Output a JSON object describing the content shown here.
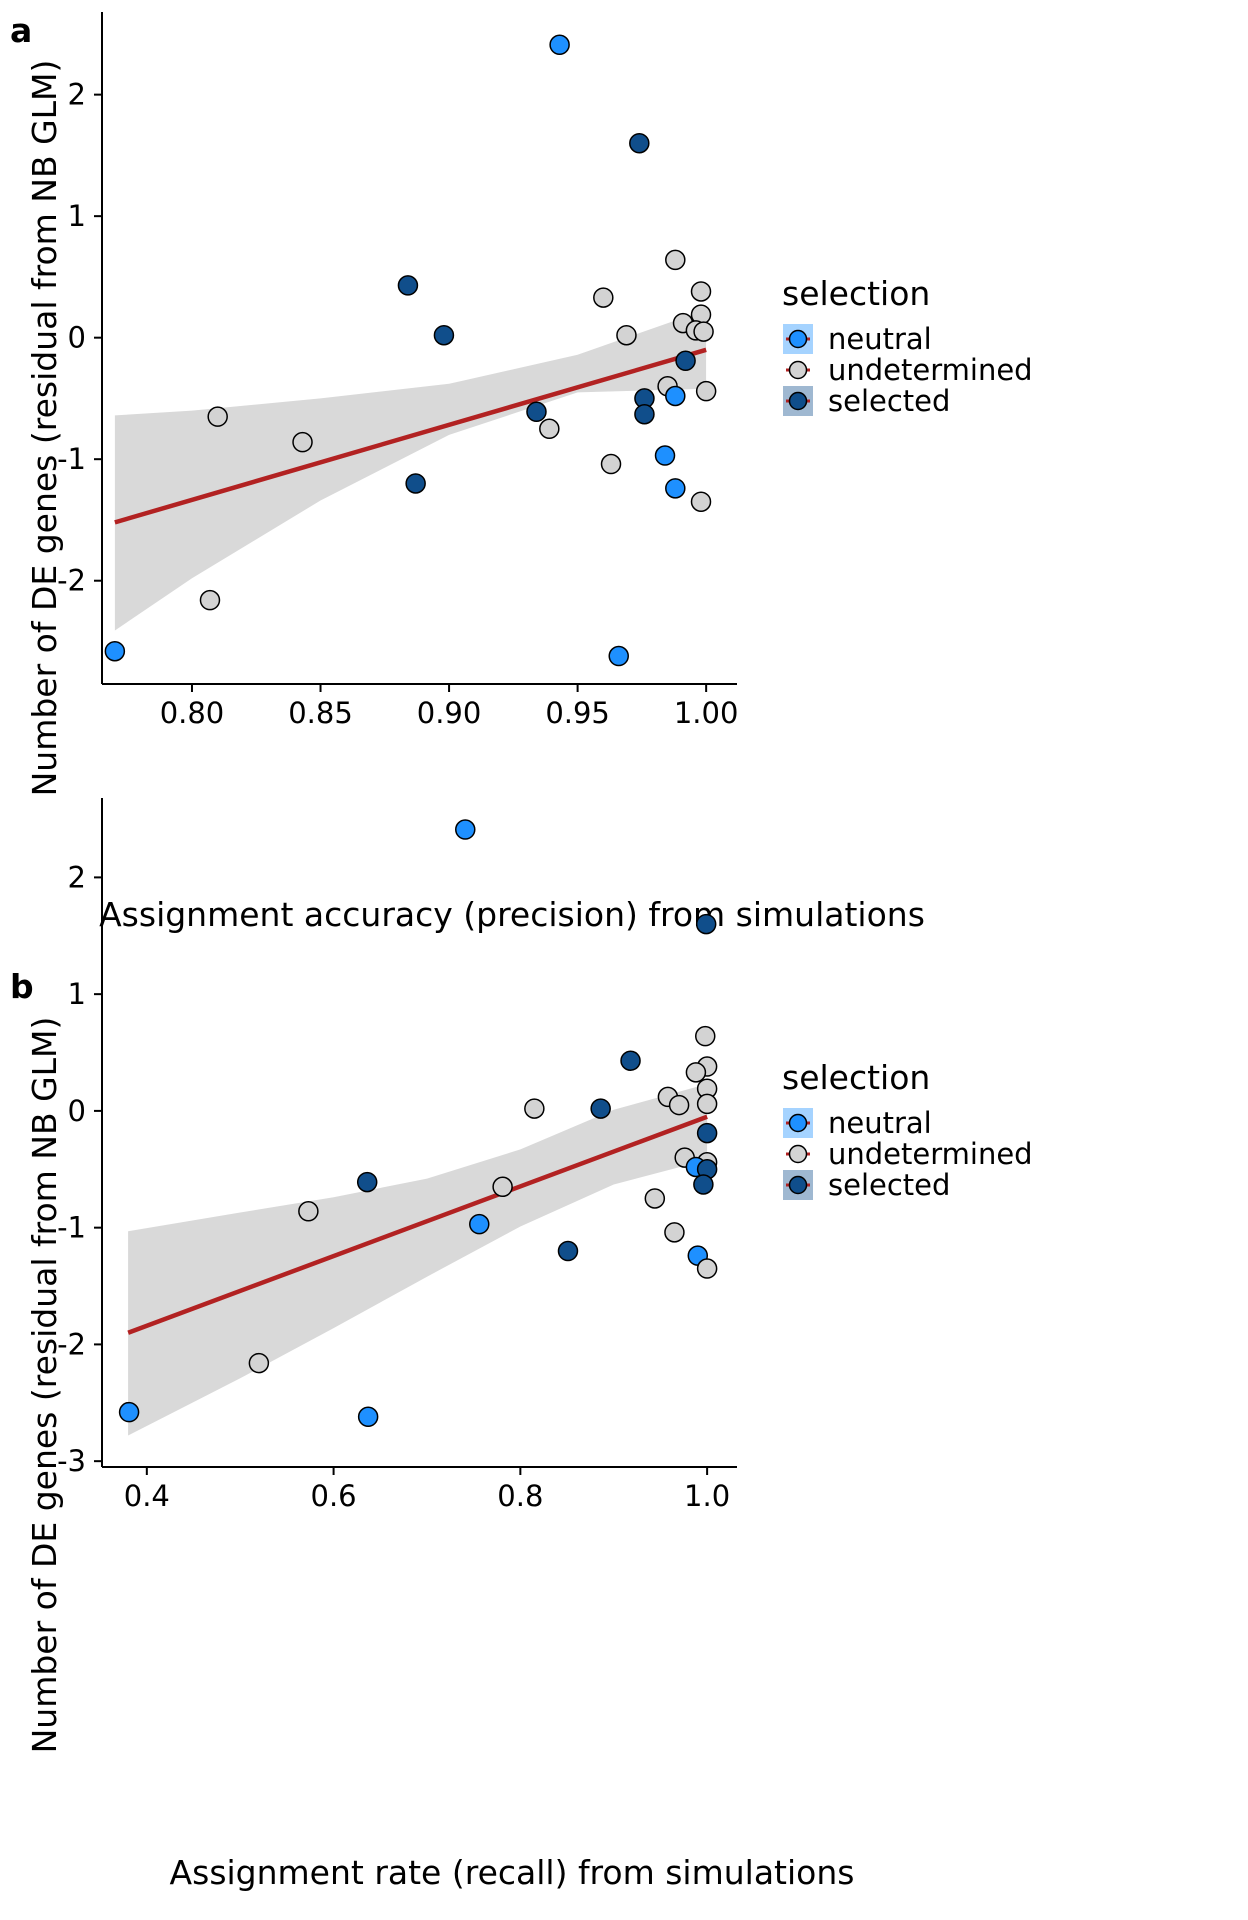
{
  "colors": {
    "neutral": "#1E90FF",
    "undetermined": "#D3D3D3",
    "selected": "#104E8B",
    "fit_line": "#B22222",
    "ribbon": "#D9D9D9",
    "point_stroke": "#000000",
    "axis": "#000000"
  },
  "legend": {
    "title": "selection",
    "items": [
      {
        "key": "neutral",
        "label": "neutral"
      },
      {
        "key": "undetermined",
        "label": "undetermined"
      },
      {
        "key": "selected",
        "label": "selected"
      }
    ]
  },
  "chart_data": [
    {
      "type": "scatter",
      "panel_label": "a",
      "xlabel": "Assignment accuracy (precision) from simulations",
      "ylabel": "Number of DE genes (residual from NB GLM)",
      "xlim": [
        0.765,
        1.012
      ],
      "ylim": [
        -2.85,
        2.68
      ],
      "xticks": [
        0.8,
        0.85,
        0.9,
        0.95,
        1.0
      ],
      "xtick_labels": [
        "0.80",
        "0.85",
        "0.90",
        "0.95",
        "1.00"
      ],
      "yticks": [
        -2,
        -1,
        0,
        1,
        2
      ],
      "ytick_labels": [
        "-2",
        "-1",
        "0",
        "1",
        "2"
      ],
      "grid": false,
      "legend_position": "right",
      "fit": {
        "x": [
          0.77,
          1.0
        ],
        "y": [
          -1.52,
          -0.1
        ]
      },
      "ribbon": {
        "x": [
          0.77,
          0.8,
          0.85,
          0.9,
          0.95,
          1.0
        ],
        "upper": [
          -0.64,
          -0.6,
          -0.5,
          -0.38,
          -0.14,
          0.23
        ],
        "lower": [
          -2.41,
          -1.98,
          -1.34,
          -0.8,
          -0.45,
          -0.42
        ]
      },
      "points": [
        {
          "x": 0.943,
          "y": 2.41,
          "group": "neutral"
        },
        {
          "x": 0.974,
          "y": 1.6,
          "group": "selected"
        },
        {
          "x": 0.988,
          "y": 0.64,
          "group": "undetermined"
        },
        {
          "x": 0.884,
          "y": 0.43,
          "group": "selected"
        },
        {
          "x": 0.96,
          "y": 0.33,
          "group": "undetermined"
        },
        {
          "x": 0.998,
          "y": 0.38,
          "group": "undetermined"
        },
        {
          "x": 0.998,
          "y": 0.19,
          "group": "undetermined"
        },
        {
          "x": 0.991,
          "y": 0.12,
          "group": "undetermined"
        },
        {
          "x": 0.996,
          "y": 0.06,
          "group": "undetermined"
        },
        {
          "x": 0.999,
          "y": 0.05,
          "group": "undetermined"
        },
        {
          "x": 0.969,
          "y": 0.02,
          "group": "undetermined"
        },
        {
          "x": 0.898,
          "y": 0.02,
          "group": "selected"
        },
        {
          "x": 0.992,
          "y": -0.19,
          "group": "selected"
        },
        {
          "x": 0.985,
          "y": -0.4,
          "group": "undetermined"
        },
        {
          "x": 1.0,
          "y": -0.44,
          "group": "undetermined"
        },
        {
          "x": 0.988,
          "y": -0.48,
          "group": "neutral"
        },
        {
          "x": 0.976,
          "y": -0.5,
          "group": "selected"
        },
        {
          "x": 0.934,
          "y": -0.61,
          "group": "selected"
        },
        {
          "x": 0.976,
          "y": -0.63,
          "group": "selected"
        },
        {
          "x": 0.81,
          "y": -0.65,
          "group": "undetermined"
        },
        {
          "x": 0.939,
          "y": -0.75,
          "group": "undetermined"
        },
        {
          "x": 0.843,
          "y": -0.86,
          "group": "undetermined"
        },
        {
          "x": 0.984,
          "y": -0.97,
          "group": "neutral"
        },
        {
          "x": 0.963,
          "y": -1.04,
          "group": "undetermined"
        },
        {
          "x": 0.887,
          "y": -1.2,
          "group": "selected"
        },
        {
          "x": 0.988,
          "y": -1.24,
          "group": "neutral"
        },
        {
          "x": 0.998,
          "y": -1.35,
          "group": "undetermined"
        },
        {
          "x": 0.807,
          "y": -2.16,
          "group": "undetermined"
        },
        {
          "x": 0.77,
          "y": -2.58,
          "group": "neutral"
        },
        {
          "x": 0.966,
          "y": -2.62,
          "group": "neutral"
        }
      ]
    },
    {
      "type": "scatter",
      "panel_label": "b",
      "xlabel": "Assignment rate (recall) from simulations",
      "ylabel": "Number of DE genes (residual from NB GLM)",
      "xlim": [
        0.352,
        1.032
      ],
      "ylim": [
        -3.05,
        2.68
      ],
      "xticks": [
        0.4,
        0.6,
        0.8,
        1.0
      ],
      "xtick_labels": [
        "0.4",
        "0.6",
        "0.8",
        "1.0"
      ],
      "yticks": [
        -3,
        -2,
        -1,
        0,
        1,
        2
      ],
      "ytick_labels": [
        "-3",
        "-2",
        "-1",
        "0",
        "1",
        "2"
      ],
      "grid": false,
      "legend_position": "right",
      "fit": {
        "x": [
          0.38,
          1.0
        ],
        "y": [
          -1.9,
          -0.05
        ]
      },
      "ribbon": {
        "x": [
          0.38,
          0.5,
          0.6,
          0.7,
          0.8,
          0.9,
          1.0
        ],
        "upper": [
          -1.03,
          -0.87,
          -0.74,
          -0.58,
          -0.33,
          0.01,
          0.23
        ],
        "lower": [
          -2.78,
          -2.29,
          -1.86,
          -1.42,
          -0.99,
          -0.63,
          -0.42
        ]
      },
      "points": [
        {
          "x": 0.741,
          "y": 2.41,
          "group": "neutral"
        },
        {
          "x": 0.999,
          "y": 1.6,
          "group": "selected"
        },
        {
          "x": 0.998,
          "y": 0.64,
          "group": "undetermined"
        },
        {
          "x": 0.918,
          "y": 0.43,
          "group": "selected"
        },
        {
          "x": 1.0,
          "y": 0.38,
          "group": "undetermined"
        },
        {
          "x": 0.988,
          "y": 0.33,
          "group": "undetermined"
        },
        {
          "x": 1.0,
          "y": 0.19,
          "group": "undetermined"
        },
        {
          "x": 0.958,
          "y": 0.12,
          "group": "undetermined"
        },
        {
          "x": 0.97,
          "y": 0.05,
          "group": "undetermined"
        },
        {
          "x": 1.0,
          "y": 0.06,
          "group": "undetermined"
        },
        {
          "x": 0.815,
          "y": 0.02,
          "group": "undetermined"
        },
        {
          "x": 0.886,
          "y": 0.02,
          "group": "selected"
        },
        {
          "x": 1.0,
          "y": -0.19,
          "group": "selected"
        },
        {
          "x": 0.976,
          "y": -0.4,
          "group": "undetermined"
        },
        {
          "x": 1.0,
          "y": -0.44,
          "group": "undetermined"
        },
        {
          "x": 0.988,
          "y": -0.48,
          "group": "neutral"
        },
        {
          "x": 1.0,
          "y": -0.5,
          "group": "selected"
        },
        {
          "x": 0.636,
          "y": -0.61,
          "group": "selected"
        },
        {
          "x": 0.996,
          "y": -0.63,
          "group": "selected"
        },
        {
          "x": 0.781,
          "y": -0.65,
          "group": "undetermined"
        },
        {
          "x": 0.944,
          "y": -0.75,
          "group": "undetermined"
        },
        {
          "x": 0.573,
          "y": -0.86,
          "group": "undetermined"
        },
        {
          "x": 0.756,
          "y": -0.97,
          "group": "neutral"
        },
        {
          "x": 0.965,
          "y": -1.04,
          "group": "undetermined"
        },
        {
          "x": 0.851,
          "y": -1.2,
          "group": "selected"
        },
        {
          "x": 0.99,
          "y": -1.24,
          "group": "neutral"
        },
        {
          "x": 1.0,
          "y": -1.35,
          "group": "undetermined"
        },
        {
          "x": 0.52,
          "y": -2.16,
          "group": "undetermined"
        },
        {
          "x": 0.381,
          "y": -2.58,
          "group": "neutral"
        },
        {
          "x": 0.637,
          "y": -2.62,
          "group": "neutral"
        }
      ]
    }
  ]
}
